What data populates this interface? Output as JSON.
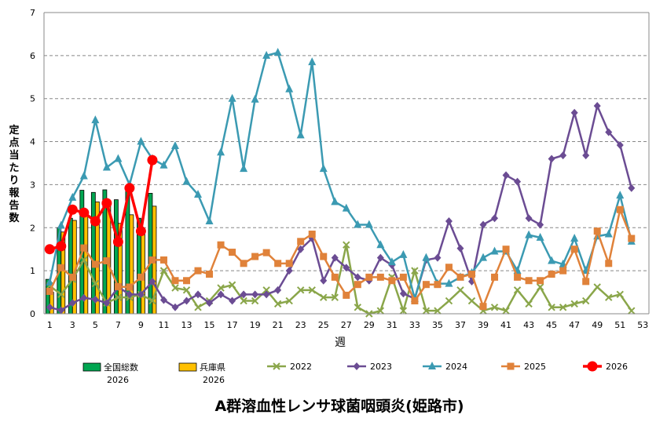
{
  "chart_data": {
    "type": "bar+line",
    "title": "A群溶血性レンサ球菌咽頭炎(姫路市)",
    "xlabel": "週",
    "ylabel": "定点当たり報告数",
    "ylim": [
      0,
      7
    ],
    "yticks": [
      "0",
      "1",
      "2",
      "3",
      "4",
      "5",
      "6",
      "7"
    ],
    "xticks": [
      "1",
      "3",
      "5",
      "7",
      "9",
      "11",
      "13",
      "15",
      "17",
      "19",
      "21",
      "23",
      "25",
      "27",
      "29",
      "31",
      "33",
      "35",
      "37",
      "39",
      "41",
      "43",
      "45",
      "47",
      "49",
      "51",
      "53"
    ],
    "grid": "horizontal dashed",
    "legend_position": "bottom",
    "bars": [
      {
        "name": "全国総数\n2026",
        "legend_line1": "全国総数",
        "legend_line2": "2026",
        "color": "#00a651",
        "values": [
          0.8,
          2.0,
          2.22,
          2.87,
          2.82,
          2.88,
          2.65,
          2.85,
          2.22,
          2.8
        ]
      },
      {
        "name": "兵庫県\n2026",
        "legend_line1": "兵庫県",
        "legend_line2": "2026",
        "color": "#ffc000",
        "values": [
          0.5,
          1.9,
          2.17,
          2.3,
          2.6,
          2.5,
          2.1,
          2.3,
          1.95,
          2.5
        ]
      }
    ],
    "series": [
      {
        "name": "2022",
        "color": "#8aa64a",
        "marker": "x",
        "values": [
          0.65,
          0.45,
          0.8,
          1.25,
          0.7,
          0.25,
          0.38,
          0.38,
          0.45,
          0.3,
          1.0,
          0.6,
          0.55,
          0.15,
          0.3,
          0.6,
          0.67,
          0.3,
          0.3,
          0.55,
          0.23,
          0.3,
          0.55,
          0.55,
          0.38,
          0.38,
          1.6,
          0.15,
          0,
          0.07,
          0.85,
          0.07,
          1.0,
          0.07,
          0.07,
          0.3,
          0.55,
          0.3,
          0.07,
          0.15,
          0.07,
          0.55,
          0.23,
          0.62,
          0.15,
          0.15,
          0.23,
          0.3,
          0.62,
          0.38,
          0.45,
          0.07
        ]
      },
      {
        "name": "2023",
        "color": "#6b4c93",
        "marker": "diamond",
        "values": [
          0.15,
          0.08,
          0.25,
          0.37,
          0.33,
          0.25,
          0.62,
          0.45,
          0.45,
          0.75,
          0.32,
          0.15,
          0.3,
          0.45,
          0.25,
          0.45,
          0.3,
          0.45,
          0.45,
          0.45,
          0.55,
          1.0,
          1.5,
          1.75,
          0.77,
          1.3,
          1.07,
          0.85,
          0.77,
          1.3,
          1.13,
          0.47,
          0.35,
          1.25,
          1.3,
          2.15,
          1.52,
          0.75,
          2.07,
          2.22,
          3.22,
          3.07,
          2.22,
          2.07,
          3.6,
          3.68,
          4.67,
          3.68,
          4.83,
          4.22,
          3.92,
          2.92
        ]
      },
      {
        "name": "2024",
        "color": "#3b9ab2",
        "marker": "triangle",
        "values": [
          0.73,
          2.05,
          2.7,
          3.2,
          4.5,
          3.4,
          3.6,
          3.0,
          4.0,
          3.6,
          3.45,
          3.9,
          3.07,
          2.77,
          2.15,
          3.75,
          5.0,
          3.37,
          4.98,
          6.0,
          6.07,
          5.22,
          4.15,
          5.85,
          3.37,
          2.6,
          2.45,
          2.07,
          2.07,
          1.6,
          1.2,
          1.37,
          0.35,
          1.3,
          0.7,
          0.7,
          0.85,
          0.95,
          1.3,
          1.45,
          1.45,
          1.0,
          1.83,
          1.77,
          1.23,
          1.15,
          1.75,
          1.0,
          1.8,
          1.85,
          2.75,
          1.68
        ]
      },
      {
        "name": "2025",
        "color": "#e0823a",
        "marker": "square",
        "values": [
          0.52,
          1.07,
          0.85,
          1.53,
          1.15,
          1.23,
          0.63,
          0.62,
          0.85,
          1.25,
          1.25,
          0.77,
          0.77,
          1.0,
          0.92,
          1.6,
          1.43,
          1.17,
          1.33,
          1.42,
          1.17,
          1.17,
          1.68,
          1.85,
          1.33,
          0.85,
          0.43,
          0.68,
          0.85,
          0.85,
          0.77,
          0.85,
          0.3,
          0.68,
          0.68,
          1.08,
          0.85,
          0.92,
          0.17,
          0.85,
          1.5,
          0.85,
          0.77,
          0.77,
          0.92,
          1.0,
          1.5,
          0.75,
          1.92,
          1.17,
          2.42,
          1.75
        ]
      },
      {
        "name": "2026",
        "color": "#ff0000",
        "marker": "circle",
        "values": [
          1.5,
          1.57,
          2.42,
          2.35,
          2.15,
          2.57,
          1.67,
          2.92,
          1.92,
          3.57
        ]
      }
    ]
  }
}
